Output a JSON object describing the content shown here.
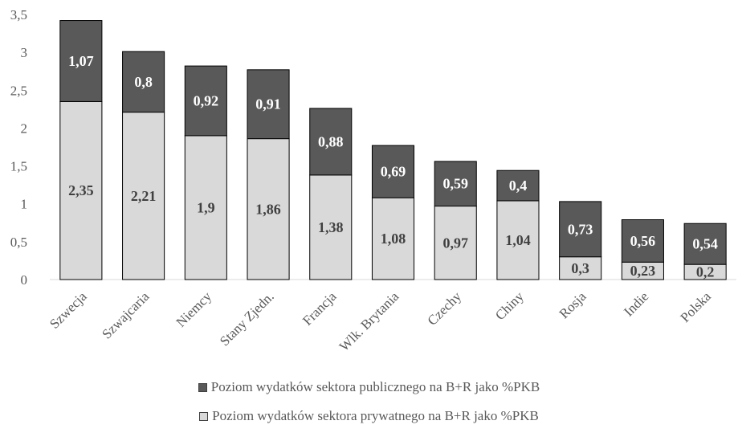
{
  "chart_data": {
    "type": "bar",
    "stacked": true,
    "categories": [
      "Szwecja",
      "Szwajcaria",
      "Niemcy",
      "Stany Zjedn.",
      "Francja",
      "Wlk. Brytania",
      "Czechy",
      "Chiny",
      "Rosja",
      "Indie",
      "Polska"
    ],
    "series": [
      {
        "name": "Poziom wydatków sektora prywatnego na B+R jako %PKB",
        "color": "#d9d9d9",
        "label_color": "#404040",
        "values": [
          2.35,
          2.21,
          1.9,
          1.86,
          1.38,
          1.08,
          0.97,
          1.04,
          0.3,
          0.23,
          0.2
        ],
        "labels": [
          "2,35",
          "2,21",
          "1,9",
          "1,86",
          "1,38",
          "1,08",
          "0,97",
          "1,04",
          "0,3",
          "0,23",
          "0,2"
        ]
      },
      {
        "name": "Poziom wydatków sektora publicznego na B+R jako %PKB",
        "color": "#595959",
        "label_color": "#ffffff",
        "values": [
          1.07,
          0.8,
          0.92,
          0.91,
          0.88,
          0.69,
          0.59,
          0.4,
          0.73,
          0.56,
          0.54
        ],
        "labels": [
          "1,07",
          "0,8",
          "0,92",
          "0,91",
          "0,88",
          "0,69",
          "0,59",
          "0,4",
          "0,73",
          "0,56",
          "0,54"
        ]
      }
    ],
    "yticks": [
      "0",
      "0,5",
      "1",
      "1,5",
      "2",
      "2,5",
      "3",
      "3,5"
    ],
    "ylim": [
      0,
      3.5
    ],
    "legend_position": "bottom",
    "legend_order": [
      1,
      0
    ]
  }
}
